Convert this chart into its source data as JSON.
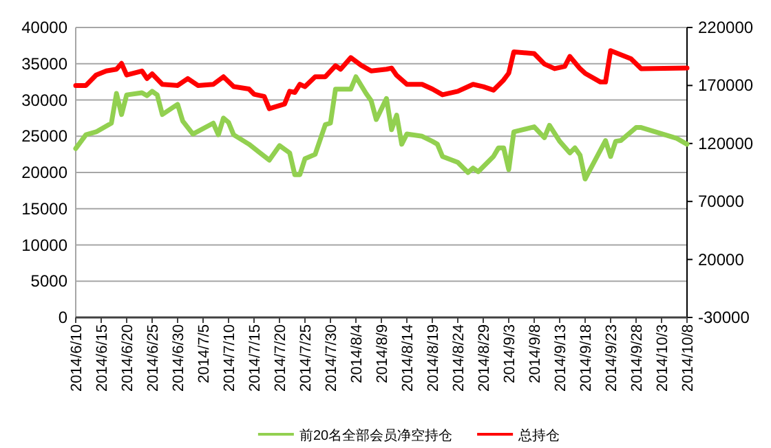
{
  "chart_data": {
    "type": "line",
    "xlim": [
      "2014-06-10",
      "2014-10-08"
    ],
    "xticks": [
      {
        "value": "2014-06-10",
        "label": "2014/6/10"
      },
      {
        "value": "2014-06-15",
        "label": "2014/6/15"
      },
      {
        "value": "2014-06-20",
        "label": "2014/6/20"
      },
      {
        "value": "2014-06-25",
        "label": "2014/6/25"
      },
      {
        "value": "2014-06-30",
        "label": "2014/6/30"
      },
      {
        "value": "2014-07-05",
        "label": "2014/7/5"
      },
      {
        "value": "2014-07-10",
        "label": "2014/7/10"
      },
      {
        "value": "2014-07-15",
        "label": "2014/7/15"
      },
      {
        "value": "2014-07-20",
        "label": "2014/7/20"
      },
      {
        "value": "2014-07-25",
        "label": "2014/7/25"
      },
      {
        "value": "2014-07-30",
        "label": "2014/7/30"
      },
      {
        "value": "2014-08-04",
        "label": "2014/8/4"
      },
      {
        "value": "2014-08-09",
        "label": "2014/8/9"
      },
      {
        "value": "2014-08-14",
        "label": "2014/8/14"
      },
      {
        "value": "2014-08-19",
        "label": "2014/8/19"
      },
      {
        "value": "2014-08-24",
        "label": "2014/8/24"
      },
      {
        "value": "2014-08-29",
        "label": "2014/8/29"
      },
      {
        "value": "2014-09-03",
        "label": "2014/9/3"
      },
      {
        "value": "2014-09-08",
        "label": "2014/9/8"
      },
      {
        "value": "2014-09-13",
        "label": "2014/9/13"
      },
      {
        "value": "2014-09-18",
        "label": "2014/9/18"
      },
      {
        "value": "2014-09-23",
        "label": "2014/9/23"
      },
      {
        "value": "2014-09-28",
        "label": "2014/9/28"
      },
      {
        "value": "2014-10-03",
        "label": "2014/10/3"
      },
      {
        "value": "2014-10-08",
        "label": "2014/10/8"
      }
    ],
    "ylim": [
      0,
      40000
    ],
    "yticks": [
      0,
      5000,
      10000,
      15000,
      20000,
      25000,
      30000,
      35000,
      40000
    ],
    "y2lim": [
      -30000,
      220000
    ],
    "y2ticks": [
      -30000,
      20000,
      70000,
      120000,
      170000,
      220000
    ],
    "grid": "y",
    "legend": "bottom",
    "marker": "none",
    "line_style": "solid",
    "series": [
      {
        "name": "前20名全部会员净空持仓",
        "color": "#92d050",
        "x": [
          "2014-06-10",
          "2014-06-12",
          "2014-06-14",
          "2014-06-17",
          "2014-06-18",
          "2014-06-19",
          "2014-06-20",
          "2014-06-23",
          "2014-06-24",
          "2014-06-25",
          "2014-06-26",
          "2014-06-27",
          "2014-06-30",
          "2014-07-01",
          "2014-07-03",
          "2014-07-07",
          "2014-07-08",
          "2014-07-09",
          "2014-07-10",
          "2014-07-11",
          "2014-07-14",
          "2014-07-16",
          "2014-07-18",
          "2014-07-20",
          "2014-07-22",
          "2014-07-23",
          "2014-07-24",
          "2014-07-25",
          "2014-07-27",
          "2014-07-29",
          "2014-07-30",
          "2014-07-31",
          "2014-08-03",
          "2014-08-04",
          "2014-08-06",
          "2014-08-07",
          "2014-08-08",
          "2014-08-10",
          "2014-08-11",
          "2014-08-12",
          "2014-08-13",
          "2014-08-14",
          "2014-08-17",
          "2014-08-19",
          "2014-08-20",
          "2014-08-21",
          "2014-08-24",
          "2014-08-26",
          "2014-08-27",
          "2014-08-28",
          "2014-08-31",
          "2014-09-01",
          "2014-09-02",
          "2014-09-03",
          "2014-09-04",
          "2014-09-08",
          "2014-09-10",
          "2014-09-11",
          "2014-09-13",
          "2014-09-15",
          "2014-09-16",
          "2014-09-17",
          "2014-09-18",
          "2014-09-22",
          "2014-09-23",
          "2014-09-24",
          "2014-09-25",
          "2014-09-28",
          "2014-09-29",
          "2014-10-06",
          "2014-10-08"
        ],
        "values": [
          23300,
          25200,
          25600,
          26800,
          30900,
          28000,
          30700,
          31000,
          30600,
          31200,
          30700,
          28000,
          29400,
          27100,
          25300,
          26800,
          25200,
          27500,
          26900,
          25200,
          23900,
          22800,
          21700,
          23700,
          22700,
          19700,
          19700,
          21900,
          22500,
          26600,
          26800,
          31500,
          31500,
          33200,
          30900,
          29900,
          27300,
          30200,
          25900,
          27900,
          23900,
          25300,
          25000,
          24300,
          23900,
          22200,
          21400,
          20000,
          20600,
          20100,
          22200,
          23400,
          23400,
          20400,
          25600,
          26300,
          24800,
          26500,
          24300,
          22700,
          23400,
          22400,
          19100,
          24400,
          22200,
          24300,
          24400,
          26200,
          26200,
          24700,
          23900
        ]
      },
      {
        "name": "总持仓",
        "color": "#ff0000",
        "axis": "y2",
        "x": [
          "2014-06-10",
          "2014-06-12",
          "2014-06-14",
          "2014-06-16",
          "2014-06-18",
          "2014-06-19",
          "2014-06-20",
          "2014-06-23",
          "2014-06-24",
          "2014-06-25",
          "2014-06-27",
          "2014-06-30",
          "2014-07-02",
          "2014-07-04",
          "2014-07-07",
          "2014-07-09",
          "2014-07-11",
          "2014-07-14",
          "2014-07-15",
          "2014-07-17",
          "2014-07-18",
          "2014-07-21",
          "2014-07-22",
          "2014-07-23",
          "2014-07-24",
          "2014-07-25",
          "2014-07-27",
          "2014-07-29",
          "2014-07-31",
          "2014-08-01",
          "2014-08-03",
          "2014-08-05",
          "2014-08-07",
          "2014-08-10",
          "2014-08-11",
          "2014-08-12",
          "2014-08-14",
          "2014-08-17",
          "2014-08-19",
          "2014-08-21",
          "2014-08-24",
          "2014-08-27",
          "2014-08-29",
          "2014-08-31",
          "2014-09-02",
          "2014-09-03",
          "2014-09-04",
          "2014-09-08",
          "2014-09-10",
          "2014-09-12",
          "2014-09-14",
          "2014-09-15",
          "2014-09-17",
          "2014-09-18",
          "2014-09-21",
          "2014-09-22",
          "2014-09-23",
          "2014-09-27",
          "2014-09-29",
          "2014-10-08"
        ],
        "values": [
          170000,
          170000,
          179000,
          182500,
          184000,
          189000,
          179000,
          182500,
          176000,
          180000,
          171000,
          170000,
          176000,
          170000,
          171000,
          177500,
          169000,
          167000,
          162500,
          160500,
          150000,
          154000,
          165000,
          164000,
          171000,
          169000,
          177500,
          177500,
          187000,
          184000,
          194000,
          187500,
          182500,
          184000,
          185000,
          178700,
          171000,
          171000,
          167000,
          162000,
          165000,
          171000,
          169000,
          166000,
          174700,
          180600,
          199000,
          197500,
          188500,
          184500,
          186500,
          195000,
          184500,
          180500,
          173000,
          173000,
          200000,
          193000,
          184500,
          185000
        ]
      }
    ]
  }
}
